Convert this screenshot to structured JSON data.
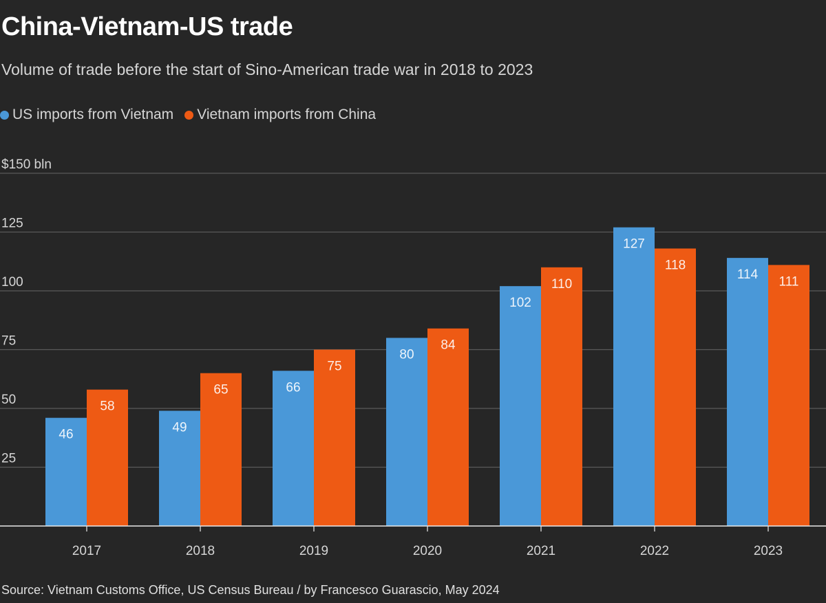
{
  "title": "China-Vietnam-US trade",
  "subtitle": "Volume of trade before the start of Sino-American trade war in 2018 to 2023",
  "source": "Source: Vietnam Customs Office, US Census Bureau / by Francesco Guarascio, May 2024",
  "legend": [
    {
      "label": "US imports from Vietnam",
      "color": "#4a98d8"
    },
    {
      "label": "Vietnam imports from China",
      "color": "#ee5a14"
    }
  ],
  "chart_data": {
    "type": "bar",
    "title": "China-Vietnam-US trade",
    "xlabel": "",
    "ylabel": "$150 bln",
    "categories": [
      "2017",
      "2018",
      "2019",
      "2020",
      "2021",
      "2022",
      "2023"
    ],
    "series": [
      {
        "name": "US imports from Vietnam",
        "color": "#4a98d8",
        "values": [
          46,
          49,
          66,
          80,
          102,
          127,
          114
        ]
      },
      {
        "name": "Vietnam imports from China",
        "color": "#ee5a14",
        "values": [
          58,
          65,
          75,
          84,
          110,
          118,
          111
        ]
      }
    ],
    "ylim": [
      0,
      150
    ],
    "yticks": [
      {
        "value": 25,
        "label": "25"
      },
      {
        "value": 50,
        "label": "50"
      },
      {
        "value": 75,
        "label": "75"
      },
      {
        "value": 100,
        "label": "100"
      },
      {
        "value": 125,
        "label": "125"
      },
      {
        "value": 150,
        "label": "$150 bln"
      }
    ],
    "grid": true,
    "legend_position": "top-left"
  }
}
